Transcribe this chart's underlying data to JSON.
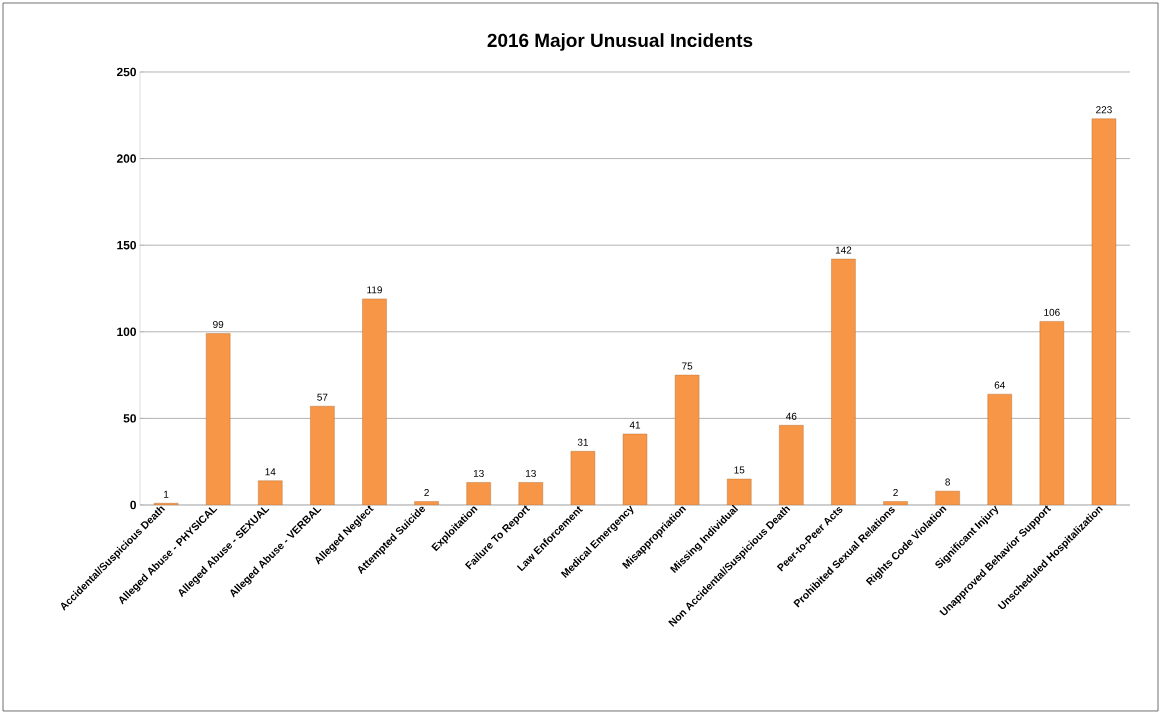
{
  "chart_data": {
    "type": "bar",
    "title": "2016 Major Unusual Incidents",
    "categories": [
      "Accidental/Suspicious Death",
      "Alleged Abuse - PHYSICAL",
      "Alleged Abuse - SEXUAL",
      "Alleged Abuse - VERBAL",
      "Alleged Neglect",
      "Attempted Suicide",
      "Exploitation",
      "Failure To Report",
      "Law Enforcement",
      "Medical Emergency",
      "Misappropriation",
      "Missing Individual",
      "Non Accidental/Suspicious Death",
      "Peer-to-Peer Acts",
      "Prohibited Sexual Relations",
      "Rights Code Violation",
      "Significant Injury",
      "Unapproved Behavior Support",
      "Unscheduled Hospitalization"
    ],
    "values": [
      1,
      99,
      14,
      57,
      119,
      2,
      13,
      13,
      31,
      41,
      75,
      15,
      46,
      142,
      2,
      8,
      64,
      106,
      223
    ],
    "color": "#f79646",
    "ylim": [
      0,
      250
    ],
    "yticks": [
      0,
      50,
      100,
      150,
      200,
      250
    ],
    "grid": "y",
    "data_labels": true
  }
}
